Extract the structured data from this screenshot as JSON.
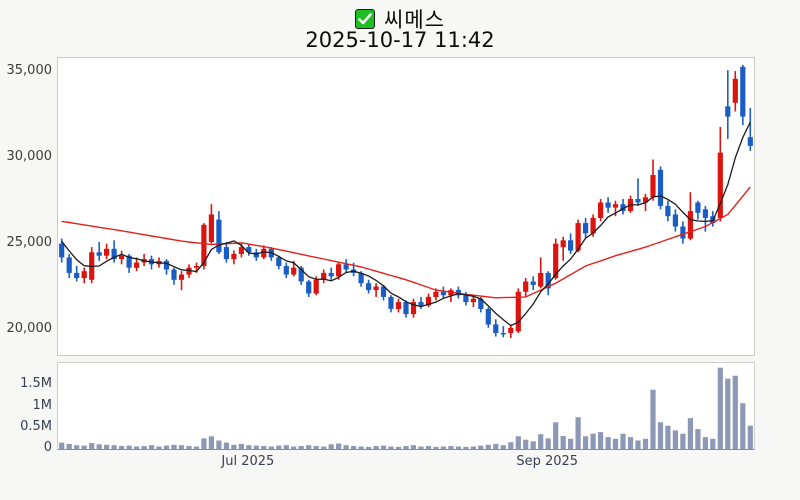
{
  "header": {
    "title": "씨메스",
    "datetime": "2025-10-17 11:42",
    "checkbox": {
      "state": "checked",
      "color": "#1fbe23",
      "icon": "check"
    }
  },
  "chart_data": {
    "type": "candlestick+volume",
    "title": "씨메스",
    "subtitle": "2025-10-17 11:42",
    "price_axis": {
      "ticks": [
        35000,
        30000,
        25000,
        20000
      ],
      "tick_labels": [
        "35,000",
        "30,000",
        "25,000",
        "20,000"
      ],
      "ylim": [
        18520,
        35810
      ],
      "grid": false
    },
    "volume_axis": {
      "ticks_k": [
        1500,
        1000,
        500,
        0
      ],
      "tick_labels": [
        "1.5M",
        "1M",
        "0.5M",
        "0"
      ],
      "max_k": 2030
    },
    "x_axis": {
      "tick_labels": [
        "Jul 2025",
        "Sep 2025"
      ],
      "tick_indices": [
        25,
        65
      ]
    },
    "colors": {
      "up": "#dc1410",
      "down": "#1a5dc4",
      "ma_short": "#1b1b1b",
      "ma_long": "#e3211b",
      "volume": "#8d97b6"
    },
    "candles_format": [
      "open",
      "high",
      "low",
      "close",
      "volume_thousands"
    ],
    "candles": [
      [
        25000,
        25300,
        23900,
        24200,
        150
      ],
      [
        24200,
        24400,
        23000,
        23300,
        120
      ],
      [
        23300,
        23700,
        22800,
        23000,
        90
      ],
      [
        23000,
        23600,
        22700,
        23400,
        80
      ],
      [
        22900,
        24800,
        22700,
        24500,
        140
      ],
      [
        24500,
        25100,
        24000,
        24300,
        110
      ],
      [
        24300,
        25000,
        24100,
        24700,
        100
      ],
      [
        24700,
        25200,
        23900,
        24100,
        90
      ],
      [
        24100,
        24600,
        23800,
        24300,
        70
      ],
      [
        24300,
        24400,
        23300,
        23600,
        80
      ],
      [
        23600,
        24200,
        23400,
        23900,
        60
      ],
      [
        23900,
        24400,
        23700,
        24100,
        70
      ],
      [
        24100,
        24300,
        23500,
        23800,
        90
      ],
      [
        23800,
        24200,
        23600,
        24000,
        60
      ],
      [
        24000,
        24100,
        23200,
        23500,
        80
      ],
      [
        23500,
        23600,
        22600,
        22900,
        100
      ],
      [
        22900,
        23400,
        22300,
        23200,
        90
      ],
      [
        23200,
        23800,
        23000,
        23600,
        70
      ],
      [
        23600,
        23900,
        23300,
        23700,
        60
      ],
      [
        23700,
        26200,
        23500,
        26100,
        250
      ],
      [
        25100,
        27300,
        25000,
        26700,
        300
      ],
      [
        26400,
        26900,
        24400,
        24500,
        200
      ],
      [
        24800,
        25100,
        23900,
        24100,
        150
      ],
      [
        24100,
        24600,
        23800,
        24400,
        100
      ],
      [
        24400,
        25000,
        24200,
        24800,
        120
      ],
      [
        24800,
        25000,
        24300,
        24500,
        90
      ],
      [
        24500,
        24700,
        24000,
        24200,
        80
      ],
      [
        24200,
        24900,
        24100,
        24700,
        70
      ],
      [
        24700,
        24800,
        24000,
        24200,
        60
      ],
      [
        24200,
        24300,
        23500,
        23700,
        80
      ],
      [
        23700,
        23900,
        23000,
        23200,
        90
      ],
      [
        23200,
        24000,
        23100,
        23600,
        60
      ],
      [
        23600,
        23700,
        22600,
        22800,
        70
      ],
      [
        22800,
        22900,
        21900,
        22100,
        90
      ],
      [
        22100,
        23100,
        22000,
        22900,
        70
      ],
      [
        22900,
        23500,
        22700,
        23300,
        60
      ],
      [
        23300,
        23600,
        22900,
        23100,
        110
      ],
      [
        23100,
        23900,
        22900,
        23800,
        130
      ],
      [
        23800,
        24100,
        23300,
        23500,
        90
      ],
      [
        23500,
        23900,
        23100,
        23300,
        70
      ],
      [
        23300,
        23400,
        22500,
        22700,
        60
      ],
      [
        22700,
        22900,
        22100,
        22300,
        50
      ],
      [
        22300,
        22700,
        21900,
        22500,
        70
      ],
      [
        22500,
        22600,
        21700,
        21900,
        80
      ],
      [
        21900,
        22000,
        21000,
        21200,
        60
      ],
      [
        21200,
        21800,
        21000,
        21600,
        50
      ],
      [
        21600,
        21700,
        20700,
        20900,
        70
      ],
      [
        20900,
        21800,
        20700,
        21600,
        90
      ],
      [
        21600,
        21900,
        21200,
        21400,
        60
      ],
      [
        21400,
        22100,
        21300,
        21900,
        70
      ],
      [
        21900,
        22400,
        21700,
        22200,
        50
      ],
      [
        22200,
        22500,
        21800,
        22000,
        60
      ],
      [
        22000,
        22400,
        21600,
        22300,
        70
      ],
      [
        22300,
        22500,
        21800,
        22000,
        60
      ],
      [
        22000,
        22200,
        21400,
        21600,
        50
      ],
      [
        21600,
        22000,
        21300,
        21800,
        60
      ],
      [
        21800,
        21900,
        21000,
        21200,
        80
      ],
      [
        21200,
        21300,
        20100,
        20300,
        100
      ],
      [
        20300,
        20600,
        19600,
        19800,
        120
      ],
      [
        19800,
        20200,
        19550,
        19750,
        90
      ],
      [
        19800,
        20300,
        19500,
        20100,
        160
      ],
      [
        19900,
        22400,
        19800,
        22200,
        300
      ],
      [
        22200,
        23000,
        21900,
        22800,
        220
      ],
      [
        22800,
        23100,
        22300,
        22600,
        180
      ],
      [
        22500,
        24200,
        22400,
        23300,
        350
      ],
      [
        23300,
        23400,
        22000,
        22400,
        250
      ],
      [
        23000,
        25300,
        22900,
        25000,
        630
      ],
      [
        24800,
        25400,
        24000,
        25200,
        310
      ],
      [
        25200,
        25600,
        24400,
        24600,
        240
      ],
      [
        24600,
        26400,
        24500,
        26200,
        750
      ],
      [
        26200,
        26500,
        25300,
        25600,
        300
      ],
      [
        25600,
        26700,
        25400,
        26500,
        360
      ],
      [
        26500,
        27600,
        26300,
        27400,
        400
      ],
      [
        27400,
        27700,
        26800,
        27100,
        280
      ],
      [
        27100,
        27500,
        26600,
        27300,
        240
      ],
      [
        27300,
        27600,
        26700,
        26900,
        360
      ],
      [
        26900,
        27800,
        26800,
        27600,
        280
      ],
      [
        27600,
        28800,
        27200,
        27400,
        200
      ],
      [
        27400,
        27900,
        26900,
        27700,
        240
      ],
      [
        27700,
        29900,
        27500,
        29000,
        1400
      ],
      [
        29300,
        29500,
        27000,
        27200,
        630
      ],
      [
        27200,
        27500,
        26300,
        26600,
        550
      ],
      [
        26700,
        27000,
        25700,
        26000,
        440
      ],
      [
        26000,
        26300,
        25000,
        25300,
        360
      ],
      [
        25300,
        28000,
        25200,
        26900,
        730
      ],
      [
        27400,
        27500,
        26400,
        26800,
        470
      ],
      [
        27000,
        27200,
        25700,
        26500,
        280
      ],
      [
        26600,
        26900,
        26000,
        26200,
        240
      ],
      [
        26500,
        31800,
        26300,
        30300,
        1920
      ],
      [
        33000,
        35100,
        31100,
        32400,
        1660
      ],
      [
        33200,
        35050,
        32700,
        34600,
        1730
      ],
      [
        35300,
        35400,
        31900,
        32400,
        1080
      ],
      [
        31200,
        32900,
        30400,
        30700,
        550
      ]
    ],
    "ma_short_seed": [
      26600,
      26100,
      25600,
      25100,
      24700
    ],
    "ma_long_anchors": [
      [
        0,
        26300
      ],
      [
        8,
        25750
      ],
      [
        16,
        25150
      ],
      [
        20,
        24950
      ],
      [
        24,
        25050
      ],
      [
        28,
        24750
      ],
      [
        34,
        24200
      ],
      [
        40,
        23650
      ],
      [
        46,
        22900
      ],
      [
        50,
        22300
      ],
      [
        54,
        22050
      ],
      [
        58,
        21850
      ],
      [
        62,
        21900
      ],
      [
        66,
        22700
      ],
      [
        70,
        23700
      ],
      [
        74,
        24300
      ],
      [
        78,
        24800
      ],
      [
        82,
        25400
      ],
      [
        86,
        26000
      ],
      [
        89,
        26700
      ],
      [
        92,
        28300
      ]
    ],
    "legend_position": "none"
  }
}
